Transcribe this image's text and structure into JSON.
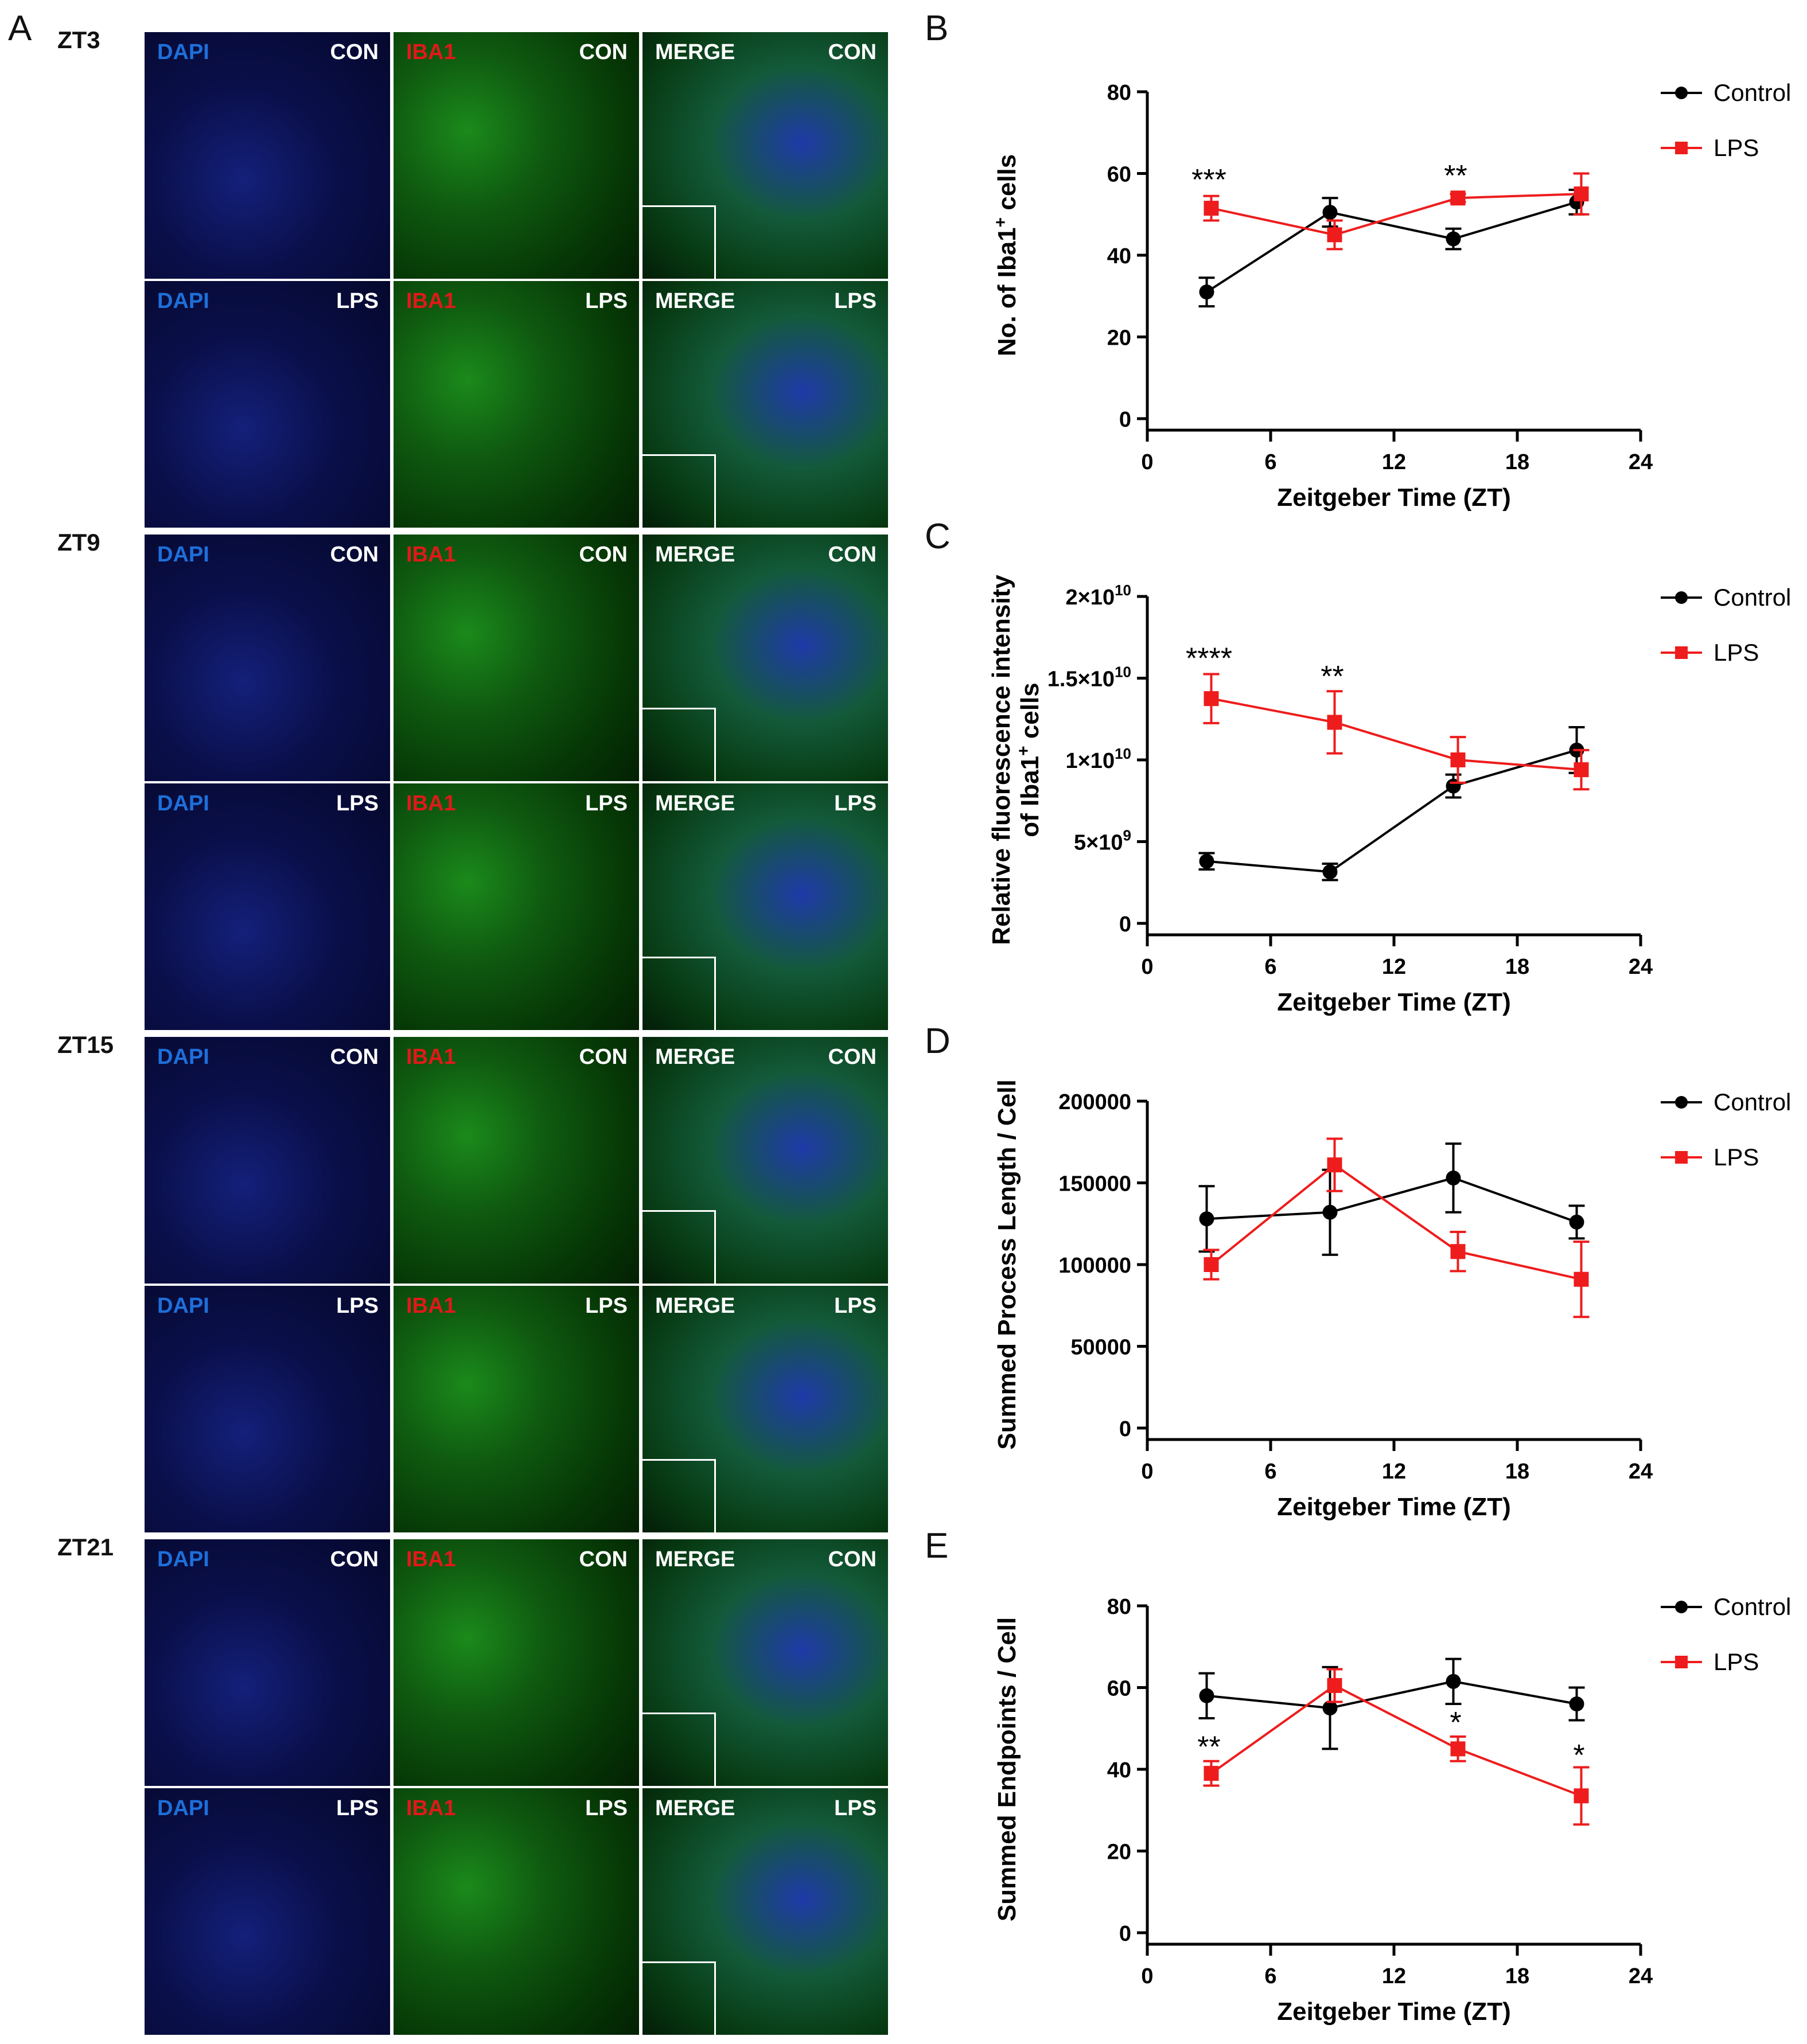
{
  "panel_letters": [
    "A",
    "B",
    "C",
    "D",
    "E"
  ],
  "micrographs": {
    "timepoints": [
      "ZT3",
      "ZT9",
      "ZT15",
      "ZT21"
    ],
    "conditions": [
      "CON",
      "LPS"
    ],
    "channels": [
      {
        "label": "DAPI",
        "color": "#1e6fd9",
        "stain": "dapi"
      },
      {
        "label": "IBA1",
        "color": "#e01919",
        "stain": "iba1"
      },
      {
        "label": "MERGE",
        "color": "#ffffff",
        "stain": "merge"
      }
    ]
  },
  "legend": {
    "control": "Control",
    "lps": "LPS"
  },
  "colors": {
    "control": "#000000",
    "lps": "#ee1c1c"
  },
  "chart_data": [
    {
      "id": "B",
      "type": "line",
      "xlabel": "Zeitgeber Time (ZT)",
      "ylabel_main": "No. of Iba1",
      "ylabel_sup": "+",
      "ylabel_tail": " cells",
      "xlim": [
        0,
        24
      ],
      "xticks": [
        0,
        6,
        12,
        18,
        24
      ],
      "ylim": [
        0,
        80
      ],
      "yticks": [
        0,
        20,
        40,
        60,
        80
      ],
      "ytick_labels": [
        "0",
        "20",
        "40",
        "60",
        "80"
      ],
      "x": [
        3,
        9,
        15,
        21
      ],
      "series": [
        {
          "name": "Control",
          "values": [
            31,
            50.5,
            44,
            53
          ],
          "errors": [
            3.5,
            3.5,
            2.5,
            3
          ]
        },
        {
          "name": "LPS",
          "values": [
            51.5,
            45,
            54,
            55
          ],
          "errors": [
            3,
            3.5,
            1,
            5
          ]
        }
      ],
      "annotations": [
        {
          "x": 3,
          "y": 56,
          "text": "***"
        },
        {
          "x": 15,
          "y": 57,
          "text": "**"
        }
      ]
    },
    {
      "id": "C",
      "type": "line",
      "xlabel": "Zeitgeber Time (ZT)",
      "ylabel_line1": "Relative fluorescence intensity",
      "ylabel_main": "of Iba1",
      "ylabel_sup": "+",
      "ylabel_tail": " cells",
      "xlim": [
        0,
        24
      ],
      "xticks": [
        0,
        6,
        12,
        18,
        24
      ],
      "ylim": [
        0,
        20
      ],
      "yticks": [
        0,
        5,
        10,
        15,
        20
      ],
      "ytick_labels": [
        "0",
        "5×10^9",
        "1×10^10",
        "1.5×10^10",
        "2×10^10"
      ],
      "x": [
        3,
        9,
        15,
        21
      ],
      "series": [
        {
          "name": "Control",
          "values": [
            3.8,
            3.15,
            8.4,
            10.6
          ],
          "errors": [
            0.5,
            0.5,
            0.7,
            1.4
          ]
        },
        {
          "name": "LPS",
          "values": [
            13.75,
            12.3,
            10.0,
            9.4
          ],
          "errors": [
            1.5,
            1.9,
            1.4,
            1.2
          ]
        }
      ],
      "annotations": [
        {
          "x": 3,
          "y": 15.6,
          "text": "****"
        },
        {
          "x": 9,
          "y": 14.5,
          "text": "**"
        }
      ]
    },
    {
      "id": "D",
      "type": "line",
      "xlabel": "Zeitgeber Time (ZT)",
      "ylabel_main": "Summed Process Length / Cell",
      "xlim": [
        0,
        24
      ],
      "xticks": [
        0,
        6,
        12,
        18,
        24
      ],
      "ylim": [
        0,
        200000
      ],
      "yticks": [
        0,
        50000,
        100000,
        150000,
        200000
      ],
      "ytick_labels": [
        "0",
        "50000",
        "100000",
        "150000",
        "200000"
      ],
      "x": [
        3,
        9,
        15,
        21
      ],
      "series": [
        {
          "name": "Control",
          "values": [
            128000,
            132000,
            153000,
            126000
          ],
          "errors": [
            20000,
            26000,
            21000,
            10000
          ]
        },
        {
          "name": "LPS",
          "values": [
            100000,
            161000,
            108000,
            91000
          ],
          "errors": [
            9000,
            16000,
            12000,
            23000
          ]
        }
      ],
      "annotations": []
    },
    {
      "id": "E",
      "type": "line",
      "xlabel": "Zeitgeber Time (ZT)",
      "ylabel_main": "Summed Endpoints / Cell",
      "xlim": [
        0,
        24
      ],
      "xticks": [
        0,
        6,
        12,
        18,
        24
      ],
      "ylim": [
        0,
        80
      ],
      "yticks": [
        0,
        20,
        40,
        60,
        80
      ],
      "ytick_labels": [
        "0",
        "20",
        "40",
        "60",
        "80"
      ],
      "x": [
        3,
        9,
        15,
        21
      ],
      "series": [
        {
          "name": "Control",
          "values": [
            58,
            55,
            61.5,
            56
          ],
          "errors": [
            5.5,
            10,
            5.5,
            4
          ]
        },
        {
          "name": "LPS",
          "values": [
            39,
            60.5,
            45,
            33.5
          ],
          "errors": [
            3,
            4,
            3,
            7
          ]
        }
      ],
      "annotations": [
        {
          "x": 3,
          "y": 43,
          "text": "**"
        },
        {
          "x": 15,
          "y": 49,
          "text": "*"
        },
        {
          "x": 21,
          "y": 41,
          "text": "*"
        }
      ]
    }
  ]
}
